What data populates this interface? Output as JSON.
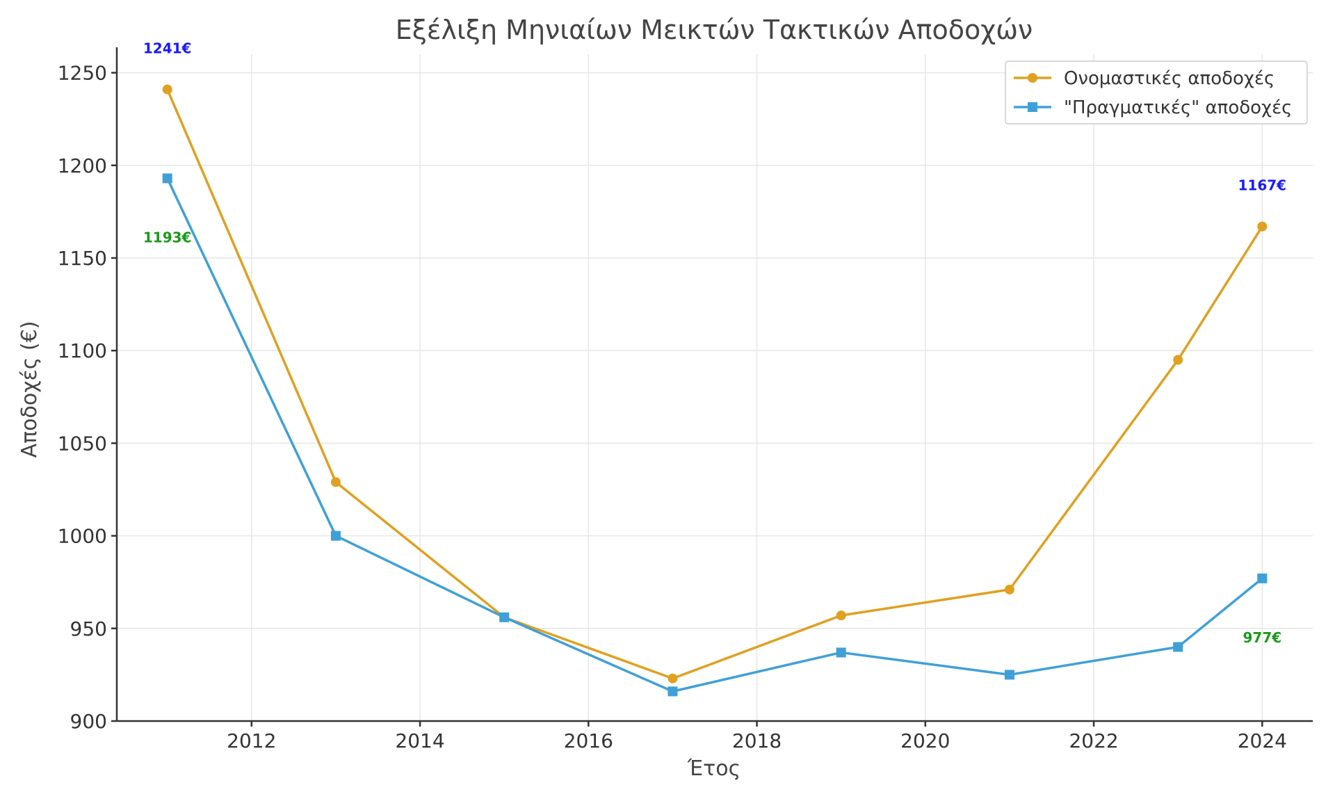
{
  "chart_data": {
    "type": "line",
    "title": "Εξέλιξη Μηνιαίων Μεικτών Τακτικών Αποδοχών",
    "xlabel": "Έτος",
    "ylabel": "Αποδοχές (€)",
    "x": [
      2011,
      2013,
      2015,
      2017,
      2019,
      2021,
      2023,
      2024
    ],
    "x_ticks": [
      2012,
      2014,
      2016,
      2018,
      2020,
      2022,
      2024
    ],
    "y_ticks": [
      900,
      950,
      1000,
      1050,
      1100,
      1150,
      1200,
      1250
    ],
    "xlim": [
      2010.4,
      2024.6
    ],
    "ylim": [
      900,
      1260
    ],
    "grid": true,
    "legend_position": "top-right",
    "series": [
      {
        "name": "Ονομαστικές αποδοχές",
        "color": "#e0a020",
        "marker": "circle",
        "values": [
          1241,
          1029,
          956,
          923,
          957,
          971,
          1095,
          1167
        ]
      },
      {
        "name": "\"Πραγματικές\" αποδοχές",
        "color": "#3fa0d8",
        "marker": "square",
        "values": [
          1193,
          1000,
          956,
          916,
          937,
          925,
          940,
          977
        ]
      }
    ],
    "annotations": [
      {
        "text": "1241€",
        "x": 2011,
        "y": 1241,
        "color": "#1a1aff",
        "placement": "above"
      },
      {
        "text": "1193€",
        "x": 2011,
        "y": 1193,
        "color": "#1a9a1a",
        "placement": "below"
      },
      {
        "text": "1167€",
        "x": 2024,
        "y": 1167,
        "color": "#1a1aff",
        "placement": "above"
      },
      {
        "text": "977€",
        "x": 2024,
        "y": 977,
        "color": "#1a9a1a",
        "placement": "below"
      }
    ]
  }
}
